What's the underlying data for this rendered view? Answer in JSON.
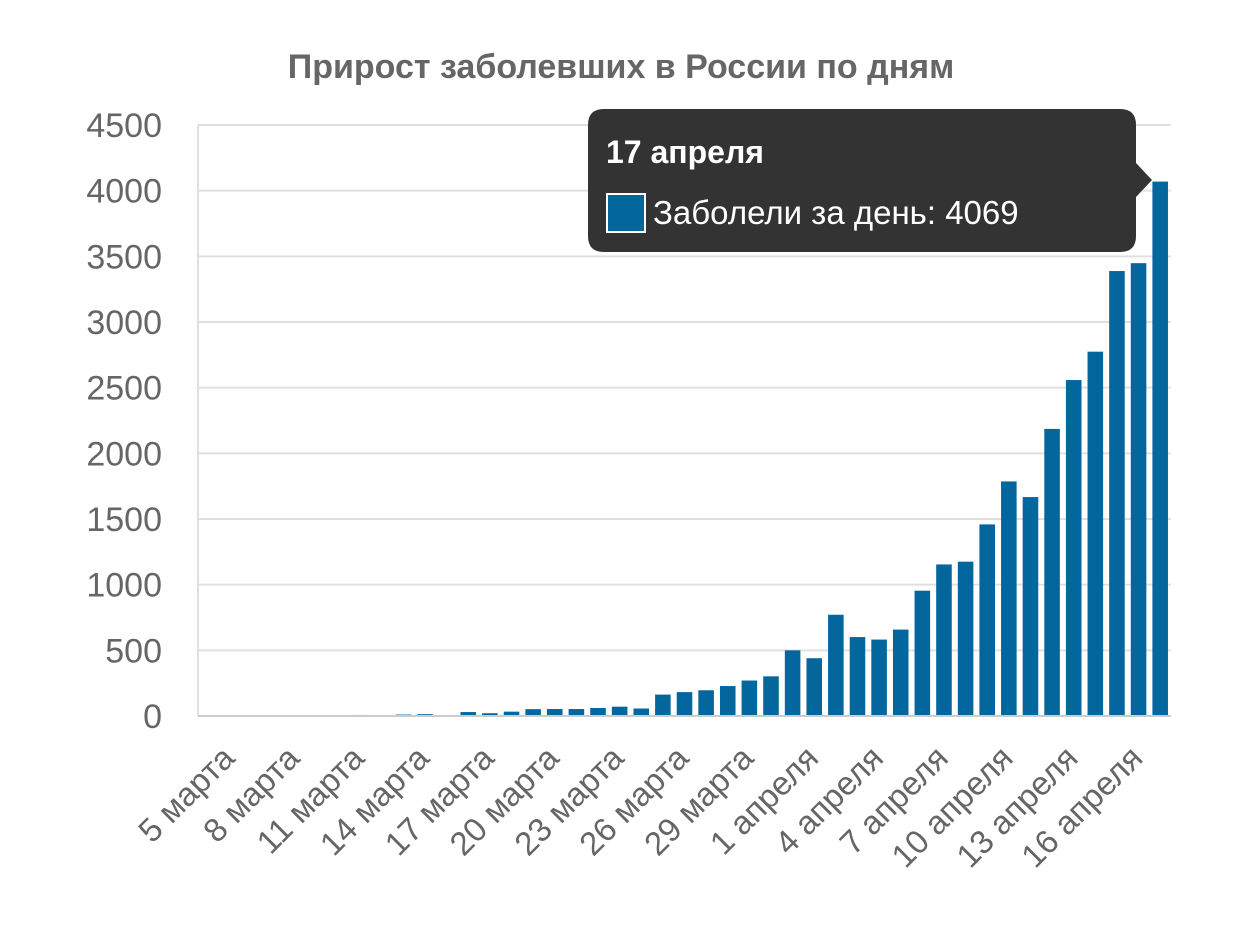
{
  "chart_data": {
    "type": "bar",
    "title": "Прирост заболевших в России по дням",
    "xlabel": "",
    "ylabel": "",
    "ylim": [
      0,
      4500
    ],
    "yticks": [
      0,
      500,
      1000,
      1500,
      2000,
      2500,
      3000,
      3500,
      4000,
      4500
    ],
    "grid": true,
    "bar_color": "#03679e",
    "categories": [
      "4 марта",
      "5 марта",
      "6 марта",
      "7 марта",
      "8 марта",
      "9 марта",
      "10 марта",
      "11 марта",
      "12 марта",
      "13 марта",
      "14 марта",
      "15 марта",
      "16 марта",
      "17 марта",
      "18 марта",
      "19 марта",
      "20 марта",
      "21 марта",
      "22 марта",
      "23 марта",
      "24 марта",
      "25 марта",
      "26 марта",
      "27 марта",
      "28 марта",
      "29 марта",
      "30 марта",
      "31 марта",
      "1 апреля",
      "2 апреля",
      "3 апреля",
      "4 апреля",
      "5 апреля",
      "6 апреля",
      "7 апреля",
      "8 апреля",
      "9 апреля",
      "10 апреля",
      "11 апреля",
      "12 апреля",
      "13 апреля",
      "14 апреля",
      "15 апреля",
      "16 апреля",
      "17 апреля"
    ],
    "tick_labels": [
      "5 марта",
      "8 марта",
      "11 марта",
      "14 марта",
      "17 марта",
      "20 марта",
      "23 марта",
      "26 марта",
      "29 марта",
      "1 апреля",
      "4 апреля",
      "7 апреля",
      "10 апреля",
      "13 апреля",
      "16 апреля"
    ],
    "series": [
      {
        "name": "Заболели за день",
        "values": [
          0,
          3,
          3,
          0,
          2,
          1,
          3,
          8,
          6,
          11,
          14,
          4,
          30,
          21,
          33,
          52,
          53,
          53,
          61,
          71,
          57,
          163,
          182,
          196,
          228,
          270,
          302,
          500,
          440,
          771,
          601,
          582,
          658,
          954,
          1154,
          1175,
          1459,
          1786,
          1667,
          2186,
          2558,
          2774,
          3388,
          3448,
          4069
        ]
      }
    ]
  },
  "tooltip": {
    "date": "17 апреля",
    "label": "Заболели за день: 4069"
  }
}
